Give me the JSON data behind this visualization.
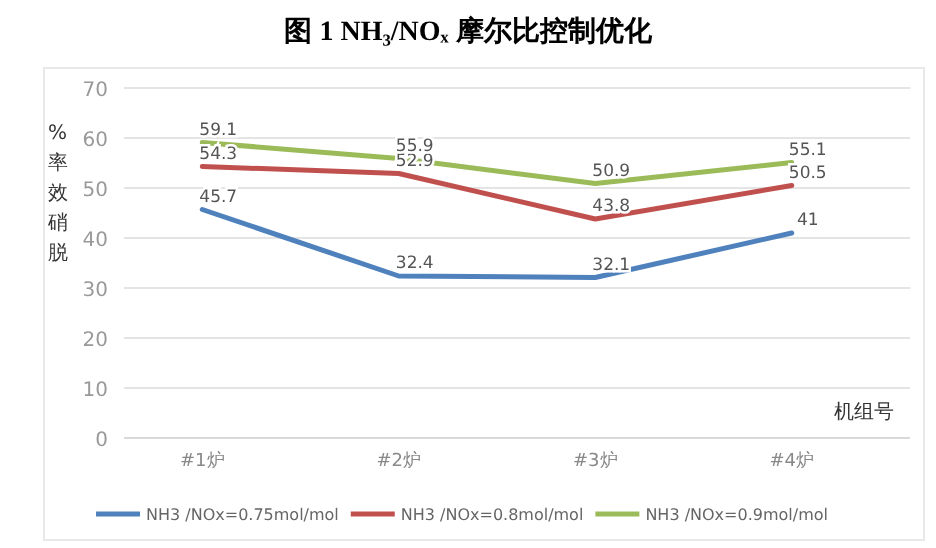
{
  "chart_data": {
    "type": "line",
    "title": "图 1 NH₃/NOₓ 摩尔比控制优化",
    "ylabel": "脱硝效率%",
    "xlabel": "机组号",
    "categories": [
      "#1炉",
      "#2炉",
      "#3炉",
      "#4炉"
    ],
    "series": [
      {
        "name": "NH3 /NOx=0.75mol/mol",
        "color": "#4f81bd",
        "values": [
          45.7,
          32.4,
          32.1,
          41
        ]
      },
      {
        "name": "NH3 /NOx=0.8mol/mol",
        "color": "#c0504d",
        "values": [
          54.3,
          52.9,
          43.8,
          50.5
        ]
      },
      {
        "name": "NH3 /NOx=0.9mol/mol",
        "color": "#9bbb59",
        "values": [
          59.1,
          55.9,
          50.9,
          55.1
        ]
      }
    ],
    "ylim": [
      0,
      70
    ],
    "yticks": [
      0,
      10,
      20,
      30,
      40,
      50,
      60,
      70
    ],
    "grid": "y",
    "data_labels": true,
    "legend": "bottom",
    "marker": "none"
  }
}
